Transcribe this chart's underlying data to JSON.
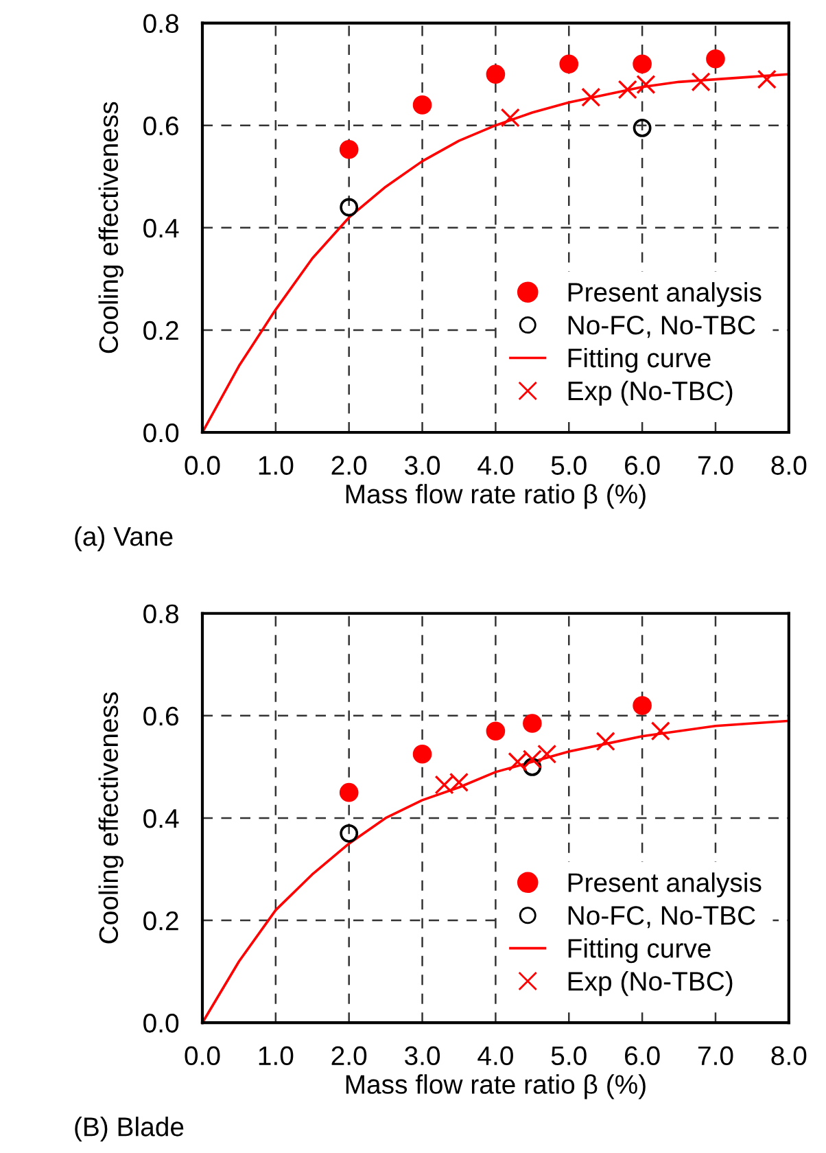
{
  "chart_data": [
    {
      "type": "scatter",
      "xlabel": "Mass flow rate ratio β (%)",
      "ylabel": "Cooling effectiveness",
      "annotations": [
        "(a) Vane"
      ],
      "xlim": [
        0,
        8
      ],
      "ylim": [
        0,
        0.8
      ],
      "xticks": [
        {
          "value": 0,
          "label": "0.0"
        },
        {
          "value": 1,
          "label": "1.0"
        },
        {
          "value": 2,
          "label": "2.0"
        },
        {
          "value": 3,
          "label": "3.0"
        },
        {
          "value": 4,
          "label": "4.0"
        },
        {
          "value": 5,
          "label": "5.0"
        },
        {
          "value": 6,
          "label": "6.0"
        },
        {
          "value": 7,
          "label": "7.0"
        },
        {
          "value": 8,
          "label": "8.0"
        }
      ],
      "yticks": [
        {
          "value": 0,
          "label": "0.0"
        },
        0.2,
        0.4,
        0.6,
        0.8
      ],
      "grid": true,
      "legend": "bottom right",
      "series": [
        {
          "name": "Present analysis",
          "marker": "circle",
          "color": "#ff0000",
          "x": [
            2,
            3,
            4,
            5,
            6,
            7
          ],
          "values": [
            0.553,
            0.64,
            0.7,
            0.72,
            0.72,
            0.73
          ]
        },
        {
          "name": "No-FC, No-TBC",
          "marker": "circle",
          "color": "#000000",
          "x": [
            2,
            6
          ],
          "values": [
            0.44,
            0.595
          ]
        },
        {
          "name": "Fitting curve",
          "type": "line",
          "marker": "none",
          "line_style": "solid",
          "color": "#ff0000",
          "x": [
            0,
            0.5,
            1,
            1.5,
            2,
            2.5,
            3,
            3.5,
            4,
            4.5,
            5,
            5.5,
            6,
            6.5,
            7,
            7.5,
            8
          ],
          "values": [
            0,
            0.13,
            0.24,
            0.34,
            0.42,
            0.48,
            0.53,
            0.57,
            0.6,
            0.625,
            0.645,
            0.66,
            0.675,
            0.685,
            0.69,
            0.695,
            0.7
          ]
        },
        {
          "name": "Exp (No-TBC)",
          "marker": "cross",
          "color": "#ff0000",
          "x": [
            4.2,
            5.3,
            5.8,
            6.05,
            6.8,
            7.7
          ],
          "values": [
            0.615,
            0.655,
            0.67,
            0.68,
            0.685,
            0.69
          ]
        }
      ]
    },
    {
      "type": "scatter",
      "xlabel": "Mass flow rate ratio β (%)",
      "ylabel": "Cooling effectiveness",
      "annotations": [
        "(B) Blade"
      ],
      "xlim": [
        0,
        8
      ],
      "ylim": [
        0,
        0.8
      ],
      "xticks": [
        {
          "value": 0,
          "label": "0.0"
        },
        {
          "value": 1,
          "label": "1.0"
        },
        {
          "value": 2,
          "label": "2.0"
        },
        {
          "value": 3,
          "label": "3.0"
        },
        {
          "value": 4,
          "label": "4.0"
        },
        {
          "value": 5,
          "label": "5.0"
        },
        {
          "value": 6,
          "label": "6.0"
        },
        {
          "value": 7,
          "label": "7.0"
        },
        {
          "value": 8,
          "label": "8.0"
        }
      ],
      "yticks": [
        {
          "value": 0,
          "label": "0.0"
        },
        0.2,
        0.4,
        0.6,
        0.8
      ],
      "grid": true,
      "legend": "bottom right",
      "series": [
        {
          "name": "Present analysis",
          "marker": "circle",
          "color": "#ff0000",
          "x": [
            2,
            3,
            4,
            4.5,
            6
          ],
          "values": [
            0.45,
            0.525,
            0.57,
            0.585,
            0.62
          ]
        },
        {
          "name": "No-FC, No-TBC",
          "marker": "circle",
          "color": "#000000",
          "x": [
            2,
            4.5
          ],
          "values": [
            0.37,
            0.5
          ]
        },
        {
          "name": "Fitting curve",
          "type": "line",
          "marker": "none",
          "line_style": "solid",
          "color": "#ff0000",
          "x": [
            0,
            0.5,
            1,
            1.5,
            2,
            2.5,
            3,
            3.5,
            4,
            4.5,
            5,
            5.5,
            6,
            6.5,
            7,
            7.5,
            8
          ],
          "values": [
            0,
            0.12,
            0.22,
            0.29,
            0.35,
            0.4,
            0.435,
            0.46,
            0.49,
            0.51,
            0.53,
            0.545,
            0.56,
            0.57,
            0.58,
            0.585,
            0.59
          ]
        },
        {
          "name": "Exp (No-TBC)",
          "marker": "cross",
          "color": "#ff0000",
          "x": [
            3.3,
            3.5,
            4.3,
            4.5,
            4.7,
            5.5,
            6.25
          ],
          "values": [
            0.465,
            0.47,
            0.51,
            0.515,
            0.525,
            0.55,
            0.57
          ]
        }
      ]
    }
  ]
}
